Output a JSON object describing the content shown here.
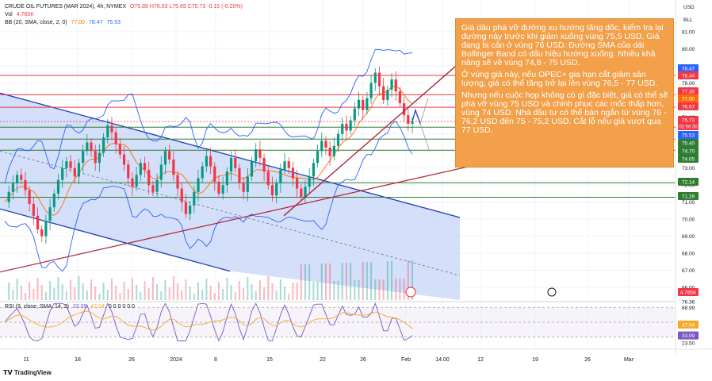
{
  "header": {
    "symbol_line": "CRUDE OIL FUTURES (MAR 2024), 4h, NYMEX",
    "ohlc": "O75.89 H76.03 L75.69 C75.73 -0.15 (-0.20%)",
    "vol_label": "Vol",
    "vol_value": "4.765K",
    "bb_label": "BB (20, SMA, close, 2, 0)",
    "bb_values": [
      "77.00",
      "78.47",
      "75.53"
    ],
    "currency": "USD",
    "unit": "BLL"
  },
  "annotation": {
    "para1": "Giá dầu phá vỡ đường xu hướng tăng dốc, kiểm tra lại đường này trước khi giảm xuống vùng 75,5 USD. Giá đang bị cản ở vùng 76 USD. Đường SMA của dải Bollinger Band có dấu hiệu hướng xuống. Nhiều khả năng sẽ về vùng 74,8 - 75 USD.",
    "para2": "Ở vùng giá này, nếu OPEC+ gia hạn cắt giảm sản lượng, giá có thể tăng trở lại lên vùng 76,5 - 77 USD.",
    "para3": "Nhưng nếu cuộc họp không có gì đặc biệt, giá có thể sẽ phá vỡ vùng 75 USD và chinh phục các mốc thấp hơn, vùng 74 USD. Nhà đầu tư có thể bán ngắn từ vùng 76 - 76,2 USD đến 75 - 75,2 USD. Cắt lỗ nếu giá vượt qua 77 USD."
  },
  "rsi": {
    "label": "RSI (9, close, SMA, 14, 2)",
    "value": "33.09",
    "sma_value": "47.04",
    "extra": "0 0 0 0 0 0"
  },
  "footer": {
    "brand": "TradingView"
  },
  "colors": {
    "up": "#089981",
    "down": "#f23645",
    "channel": "#1e3fb5",
    "channel_fill": "#c6d4f8",
    "trend": "#b22234",
    "bb": "#2962ff",
    "sma": "#ff6d00",
    "support": "#2e7d32",
    "resistance": "#c2185b",
    "rsi": "#7e57c2",
    "note": "#f3a04a"
  },
  "chart_data": {
    "type": "candlestick",
    "title": "CRUDE OIL FUTURES (MAR 2024), 4h, NYMEX",
    "x_ticks": [
      "11",
      "18",
      "26",
      "2024",
      "8",
      "15",
      "22",
      "26",
      "Feb",
      "14:00",
      "12",
      "19",
      "26",
      "Mar"
    ],
    "y_ticks": [
      66.0,
      67.0,
      68.0,
      69.0,
      70.0,
      71.0,
      72.0,
      73.0,
      74.0,
      75.0,
      76.0,
      77.0,
      78.0,
      79.0,
      80.0,
      81.0
    ],
    "ylim": [
      65.8,
      81.3
    ],
    "price_levels": [
      {
        "value": 78.47,
        "label": "78.47",
        "color": "#2962ff",
        "kind": "bb-upper"
      },
      {
        "value": 78.44,
        "label": "78.44",
        "color": "#f23645",
        "kind": "resistance"
      },
      {
        "value": 77.3,
        "label": "77.30",
        "color": "#f23645",
        "kind": "resistance"
      },
      {
        "value": 77.0,
        "label": "77.00",
        "color": "#ff6d00",
        "kind": "bb-basis"
      },
      {
        "value": 76.57,
        "label": "76.57",
        "color": "#f23645",
        "kind": "resistance"
      },
      {
        "value": 75.73,
        "label": "75.73",
        "color": "#f23645",
        "kind": "last-price"
      },
      {
        "value": 75.53,
        "label": "75.53",
        "color": "#2962ff",
        "kind": "bb-lower"
      },
      {
        "value": 75.4,
        "label": "75.40",
        "color": "#2e7d32",
        "kind": "support"
      },
      {
        "value": 74.7,
        "label": "74.70",
        "color": "#2e7d32",
        "kind": "support"
      },
      {
        "value": 74.05,
        "label": "74.05",
        "color": "#2e7d32",
        "kind": "support"
      },
      {
        "value": 72.14,
        "label": "72.14",
        "color": "#2e7d32",
        "kind": "support"
      },
      {
        "value": 71.29,
        "label": "71.29",
        "color": "#2e7d32",
        "kind": "support"
      }
    ],
    "countdown": "02:56:30",
    "close_series": [
      71.0,
      71.6,
      72.1,
      72.6,
      72.3,
      71.7,
      70.9,
      70.2,
      69.4,
      69.0,
      69.9,
      70.7,
      71.5,
      72.3,
      73.0,
      73.4,
      73.0,
      72.5,
      73.3,
      74.0,
      74.5,
      74.0,
      73.3,
      73.9,
      74.8,
      75.5,
      75.1,
      74.4,
      73.8,
      73.2,
      72.4,
      71.9,
      72.6,
      73.3,
      72.9,
      72.0,
      71.6,
      72.3,
      73.2,
      74.0,
      73.5,
      72.6,
      71.8,
      71.0,
      70.3,
      70.8,
      71.6,
      72.4,
      73.1,
      73.7,
      73.1,
      72.2,
      71.5,
      72.0,
      72.8,
      73.6,
      73.0,
      72.1,
      71.6,
      72.5,
      73.4,
      74.1,
      73.6,
      72.8,
      72.0,
      71.4,
      72.1,
      72.9,
      73.4,
      73.0,
      72.4,
      71.8,
      71.3,
      71.9,
      72.5,
      73.3,
      74.0,
      74.6,
      74.2,
      73.7,
      74.3,
      75.0,
      75.6,
      75.2,
      75.8,
      76.5,
      77.0,
      76.4,
      77.1,
      78.0,
      78.6,
      77.8,
      77.0,
      77.6,
      78.2,
      77.5,
      76.8,
      76.1,
      75.6,
      75.73
    ],
    "rsi_levels": {
      "upper": 68.99,
      "mid": 49.91,
      "lower": 30.84
    },
    "rsi_axis": [
      "76.36",
      "68.99",
      "49.91",
      "47.04",
      "33.09",
      "30.84",
      "23.50"
    ]
  }
}
